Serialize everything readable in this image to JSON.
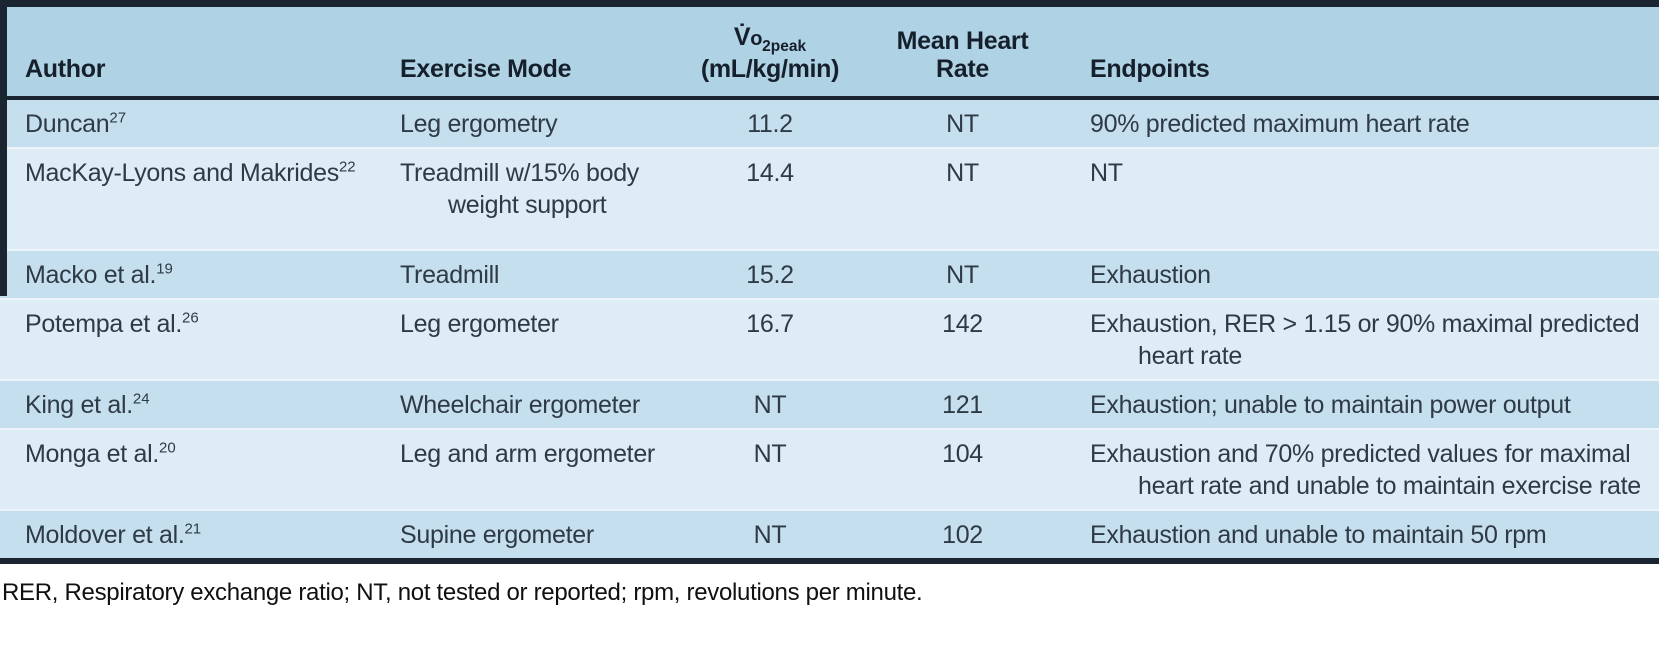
{
  "table": {
    "header": {
      "author": "Author",
      "exercise_mode": "Exercise Mode",
      "vo2peak_v": "V̇",
      "vo2peak_o": "o",
      "vo2peak_sub": "2peak",
      "vo2peak_unit": "(mL/kg/min)",
      "mean_hr_line1": "Mean Heart",
      "mean_hr_line2": "Rate",
      "endpoints": "Endpoints"
    },
    "rows": [
      {
        "author": "Duncan",
        "ref": "27",
        "mode": "Leg ergometry",
        "vo2": "11.2",
        "hr": "NT",
        "endpoint": "90% predicted maximum heart rate"
      },
      {
        "author": "MacKay-Lyons and Makrides",
        "ref": "22",
        "mode": "Treadmill w/15% body weight support",
        "vo2": "14.4",
        "hr": "NT",
        "endpoint": "NT"
      },
      {
        "author": "Macko et al.",
        "ref": "19",
        "mode": "Treadmill",
        "vo2": "15.2",
        "hr": "NT",
        "endpoint": "Exhaustion"
      },
      {
        "author": "Potempa et al.",
        "ref": "26",
        "mode": "Leg ergometer",
        "vo2": "16.7",
        "hr": "142",
        "endpoint": "Exhaustion, RER > 1.15 or 90% maximal predicted heart rate"
      },
      {
        "author": "King et al.",
        "ref": "24",
        "mode": "Wheelchair ergometer",
        "vo2": "NT",
        "hr": "121",
        "endpoint": "Exhaustion; unable to maintain power output"
      },
      {
        "author": "Monga et al.",
        "ref": "20",
        "mode": "Leg and arm ergometer",
        "vo2": "NT",
        "hr": "104",
        "endpoint": "Exhaustion and 70% predicted values for maximal heart rate and unable to maintain exercise rate"
      },
      {
        "author": "Moldover et al.",
        "ref": "21",
        "mode": "Supine ergometer",
        "vo2": "NT",
        "hr": "102",
        "endpoint": "Exhaustion and unable to maintain 50 rpm"
      }
    ]
  },
  "footnote": "RER, Respiratory exchange ratio; NT, not tested or reported; rpm, revolutions per minute.",
  "colors": {
    "border_dark": "#1b2531",
    "header_bg": "#afd2e4",
    "row_odd_bg": "#c6dfee",
    "row_even_bg": "#ddecf5",
    "header_text": "#16202c",
    "body_text": "#2e3a46"
  }
}
